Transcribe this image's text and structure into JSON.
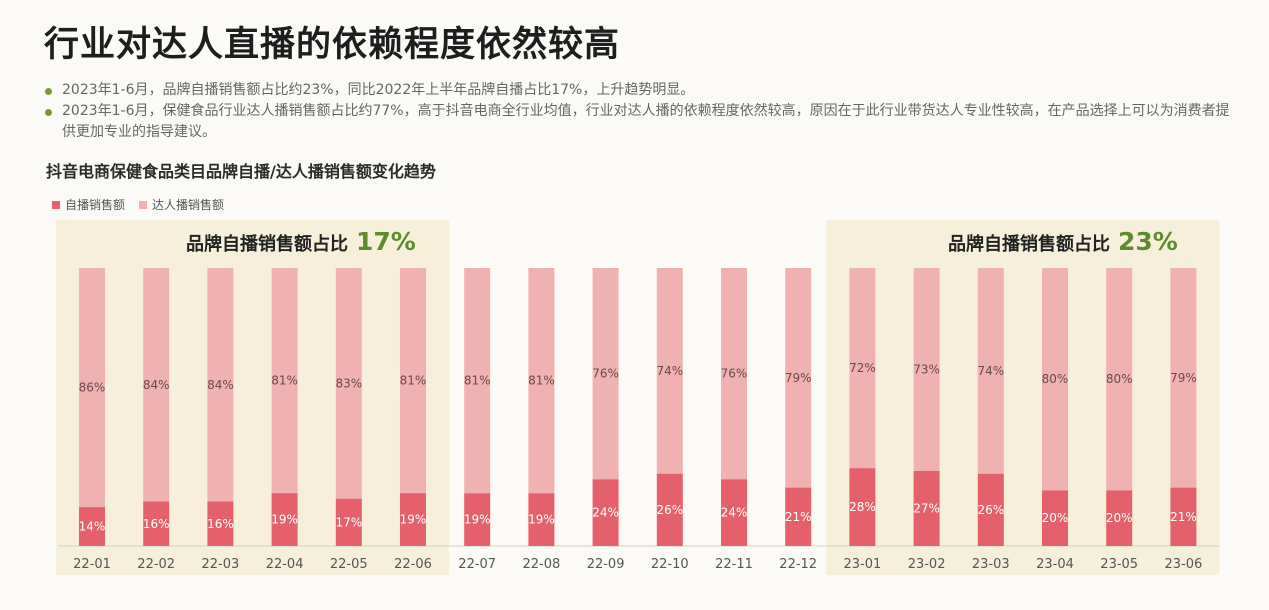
{
  "page": {
    "title": "行业对达人直播的依赖程度依然较高",
    "bullets": [
      "2023年1-6月，品牌自播销售额占比约23%，同比2022年上半年品牌自播占比17%，上升趋势明显。",
      "2023年1-6月，保健食品行业达人播销售额占比约77%，高于抖音电商全行业均值，行业对达人播的依赖程度依然较高，原因在于此行业带货达人专业性较高，在产品选择上可以为消费者提供更加专业的指导建议。"
    ]
  },
  "chart_data": {
    "type": "bar",
    "stacked": true,
    "normalized": true,
    "title": "抖音电商保健食品类目品牌自播/达人播销售额变化趋势",
    "categories": [
      "22-01",
      "22-02",
      "22-03",
      "22-04",
      "22-05",
      "22-06",
      "22-07",
      "22-08",
      "22-09",
      "22-10",
      "22-11",
      "22-12",
      "23-01",
      "23-02",
      "23-03",
      "23-04",
      "23-05",
      "23-06"
    ],
    "series": [
      {
        "name": "自播销售额",
        "color": "#e4616c",
        "values": [
          14,
          16,
          16,
          19,
          17,
          19,
          19,
          19,
          24,
          26,
          24,
          21,
          28,
          27,
          26,
          20,
          20,
          21
        ]
      },
      {
        "name": "达人播销售额",
        "color": "#f0b1b1",
        "values": [
          86,
          84,
          84,
          81,
          83,
          81,
          81,
          81,
          76,
          74,
          76,
          79,
          72,
          73,
          74,
          80,
          80,
          79
        ]
      }
    ],
    "value_format": "%",
    "ylim": [
      0,
      100
    ],
    "legend_position": "top-left",
    "highlights": [
      {
        "label": "品牌自播销售额占比",
        "value": "17%",
        "from": "22-01",
        "to": "22-06",
        "color": "#f6f0da"
      },
      {
        "label": "品牌自播销售额占比",
        "value": "23%",
        "from": "23-01",
        "to": "23-06",
        "color": "#f6f0da"
      }
    ]
  }
}
